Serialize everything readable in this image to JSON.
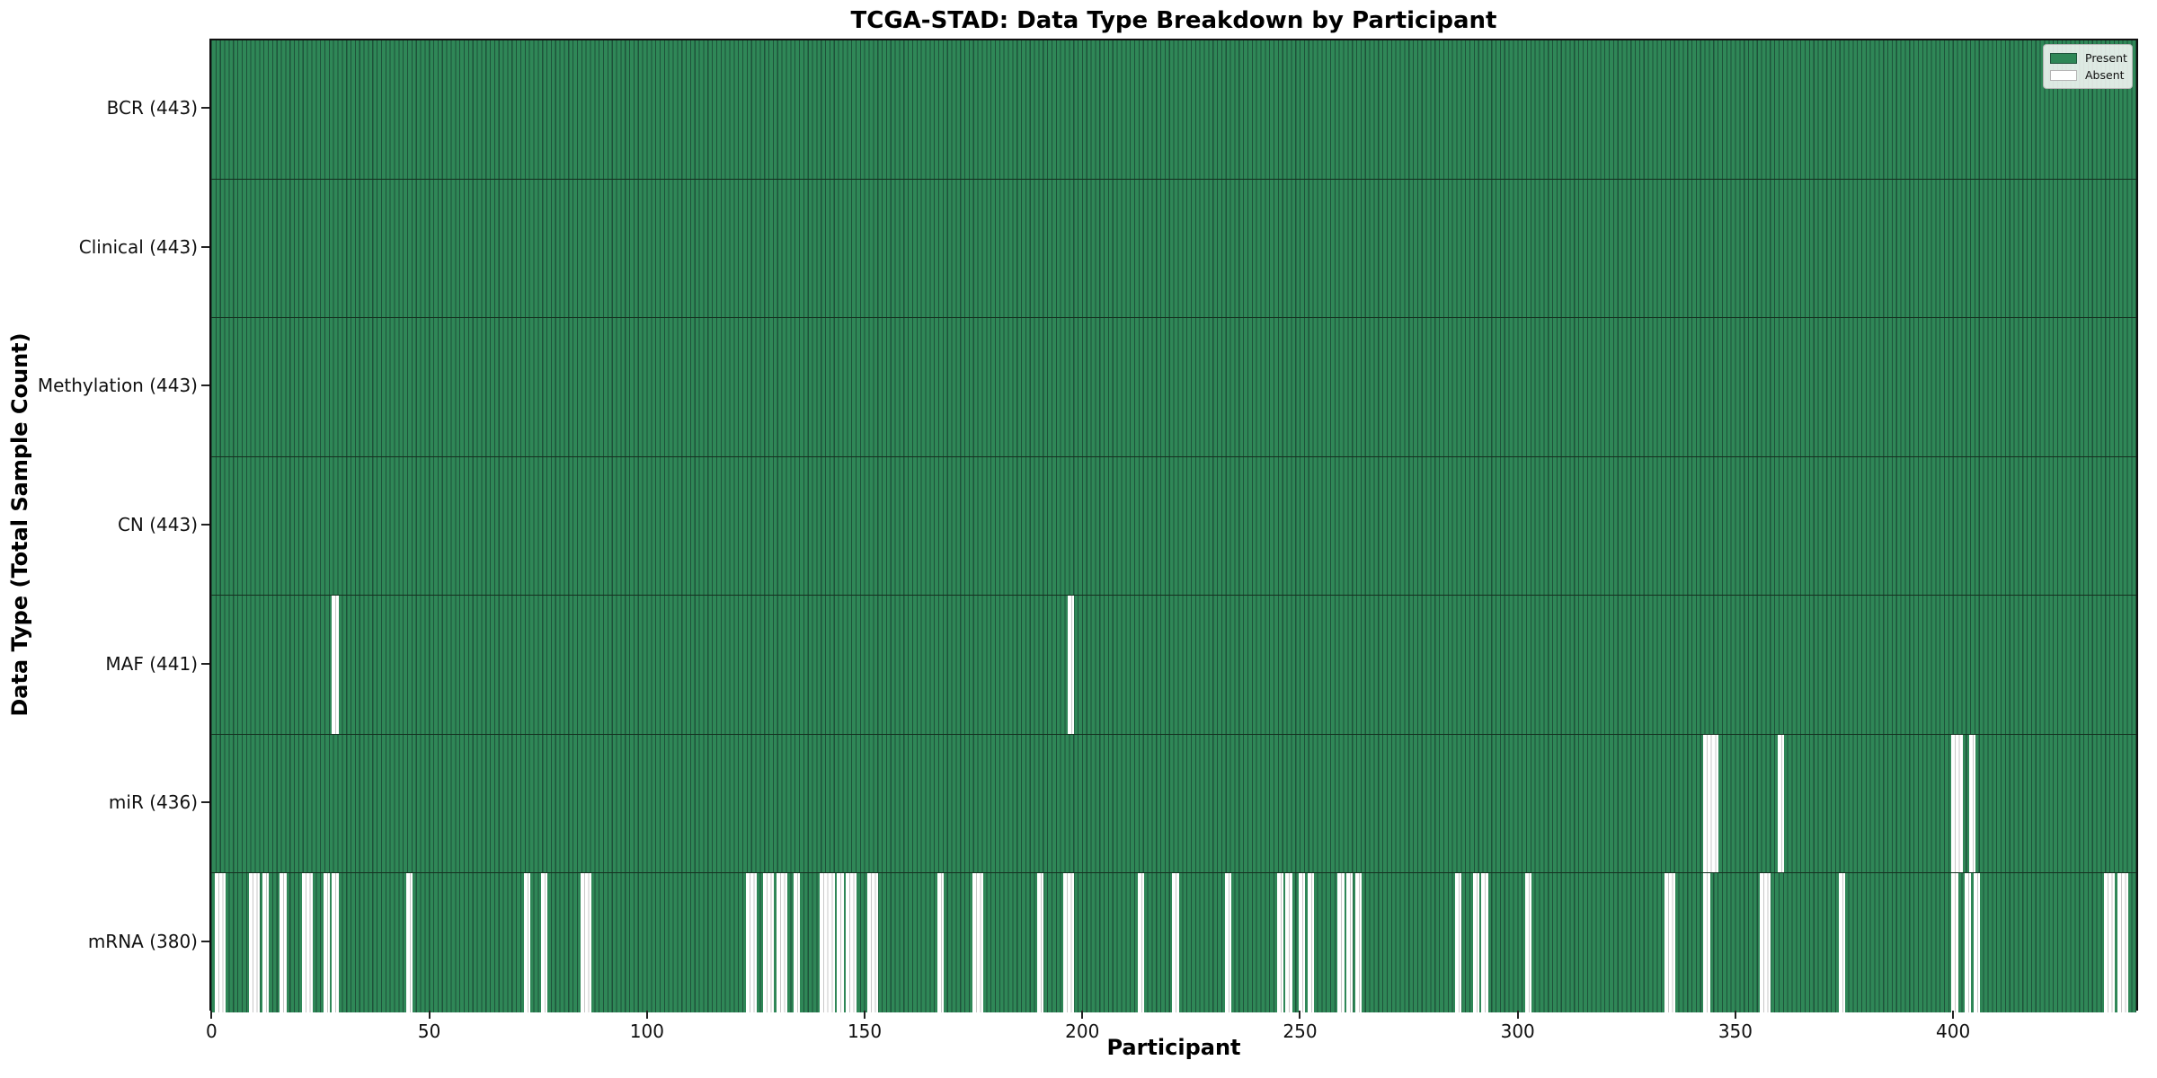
{
  "chart_data": {
    "type": "heatmap",
    "title": "TCGA-STAD: Data Type Breakdown by Participant",
    "xlabel": "Participant",
    "ylabel": "Data Type (Total Sample Count)",
    "n_participants": 443,
    "x_ticks": [
      0,
      50,
      100,
      150,
      200,
      250,
      300,
      350,
      400
    ],
    "x_range": [
      -0.5,
      442.5
    ],
    "grid": false,
    "legend_position": "upper right",
    "legend": [
      {
        "label": "Present",
        "color": "#2f8757"
      },
      {
        "label": "Absent",
        "color": "#ffffff"
      }
    ],
    "colors": {
      "present": "#2f8757",
      "present_edge": "#1e523a",
      "absent": "#ffffff",
      "absent_edge": "#c8c8c8",
      "row_separator": "#14301f",
      "plot_border": "#0f0f0f"
    },
    "rows": [
      {
        "name": "BCR",
        "label": "BCR (443)",
        "count": 443,
        "missing": []
      },
      {
        "name": "Clinical",
        "label": "Clinical (443)",
        "count": 443,
        "missing": []
      },
      {
        "name": "Methylation",
        "label": "Methylation (443)",
        "count": 443,
        "missing": []
      },
      {
        "name": "CN",
        "label": "CN (443)",
        "count": 443,
        "missing": []
      },
      {
        "name": "MAF",
        "label": "MAF (441)",
        "count": 441,
        "missing": [
          28,
          197
        ]
      },
      {
        "name": "miR",
        "label": "miR (436)",
        "count": 436,
        "missing": [
          343,
          344,
          345,
          360,
          400,
          401,
          404
        ]
      },
      {
        "name": "mRNA",
        "label": "mRNA (380)",
        "count": 380,
        "missing": [
          1,
          2,
          9,
          10,
          12,
          16,
          21,
          22,
          26,
          28,
          45,
          72,
          76,
          85,
          86,
          123,
          124,
          127,
          128,
          130,
          131,
          134,
          140,
          141,
          142,
          144,
          146,
          147,
          151,
          152,
          167,
          175,
          176,
          190,
          196,
          197,
          213,
          221,
          233,
          245,
          247,
          250,
          252,
          259,
          261,
          263,
          286,
          290,
          292,
          302,
          334,
          335,
          343,
          356,
          357,
          374,
          400,
          403,
          405,
          435,
          436,
          438,
          439
        ]
      }
    ]
  }
}
